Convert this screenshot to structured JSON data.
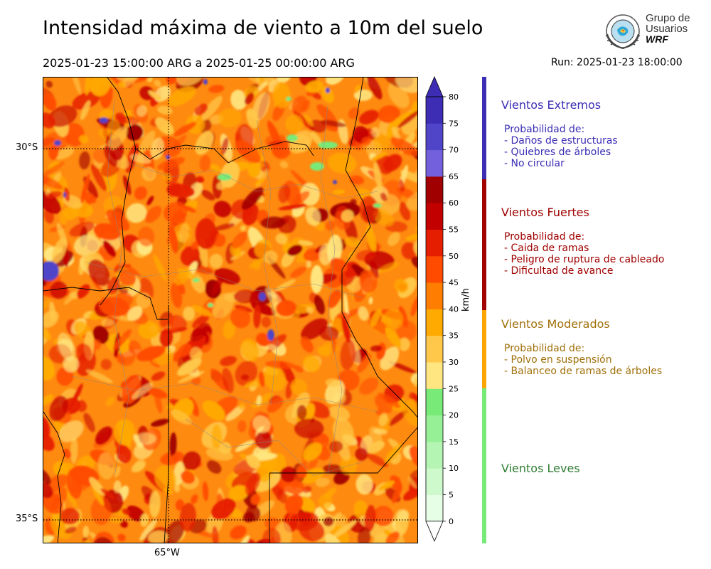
{
  "header": {
    "title": "Intensidad máxima de viento a 10m del suelo",
    "period": "2025-01-23 15:00:00 ARG  a  2025-01-25 00:00:00 ARG",
    "run": "Run: 2025-01-23 18:00:00"
  },
  "logo": {
    "line1": "Grupo de",
    "line2": "Usuarios",
    "line3": "WRF"
  },
  "map": {
    "lat_labels": [
      "30°S",
      "35°S"
    ],
    "lon_labels": [
      "65°W"
    ]
  },
  "colorbar": {
    "unit": "km/h",
    "ticks": [
      "0",
      "5",
      "10",
      "15",
      "20",
      "25",
      "30",
      "35",
      "40",
      "45",
      "50",
      "55",
      "60",
      "65",
      "70",
      "75",
      "80"
    ],
    "colors": [
      "#e6fde6",
      "#cdf9cd",
      "#b4f5b4",
      "#96f096",
      "#78ea78",
      "#ffe680",
      "#ffc84a",
      "#ffaa00",
      "#ff7d00",
      "#ff4b00",
      "#e61e00",
      "#c30000",
      "#a00000",
      "#7360dc",
      "#5045c8",
      "#3c2db4"
    ],
    "extend_low_color": "#ffffff",
    "extend_high_color": "#3c2db4"
  },
  "categories": [
    {
      "title": "Vientos Extremos",
      "color": "#3b2db4",
      "text_color": "#3b2db4",
      "prob_label": "Probabilidad de:",
      "items": [
        "- Daños de estructuras",
        "- Quiebres de árboles",
        "- No circular"
      ]
    },
    {
      "title": "Vientos Fuertes",
      "color": "#a00000",
      "text_color": "#a00000",
      "prob_label": "Probabilidad de:",
      "items": [
        "- Caida de ramas",
        "- Peligro de ruptura de cableado",
        "- Dificultad de avance"
      ]
    },
    {
      "title": "Vientos Moderados",
      "color": "#ffa500",
      "text_color": "#a0700a",
      "prob_label": "Probabilidad de:",
      "items": [
        "- Polvo en suspensión",
        "- Balanceo de ramas de árboles"
      ]
    },
    {
      "title": "Vientos Leves",
      "color": "#78ea78",
      "text_color": "#2e7d32",
      "prob_label": "",
      "items": []
    }
  ]
}
